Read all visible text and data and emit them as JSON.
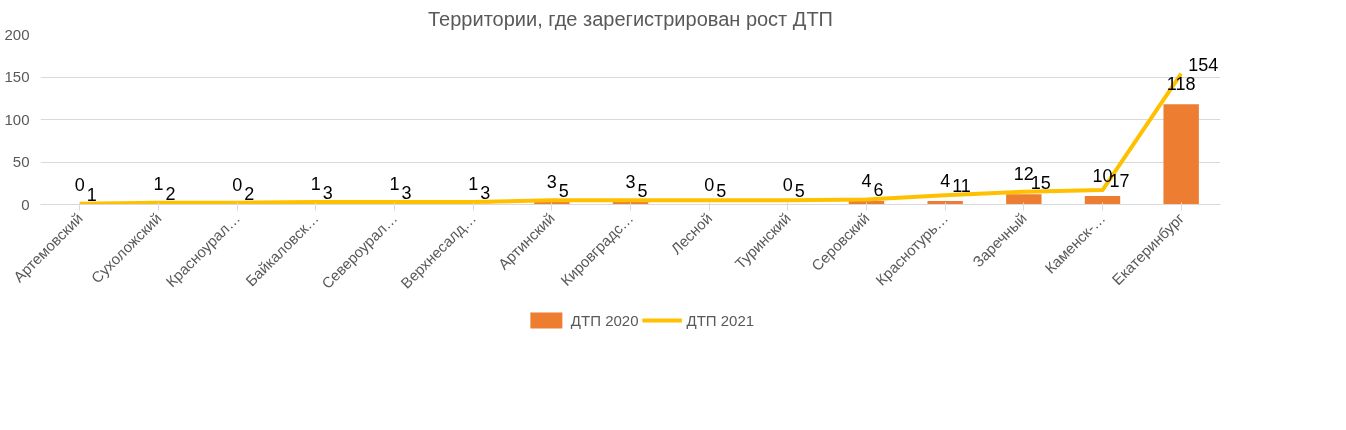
{
  "chart_data": {
    "type": "bar",
    "title": "Территории, где зарегистрирован рост ДТП",
    "categories": [
      "Артемовский",
      "Сухоложский",
      "Красноурал…",
      "Байкаловск…",
      "Североурал…",
      "Верхнесалд…",
      "Артинский",
      "Кировградс…",
      "Лесной",
      "Туринский",
      "Серовский",
      "Краснотурь…",
      "Заречный",
      "Каменск-…",
      "Екатеринбург"
    ],
    "series": [
      {
        "name": "ДТП 2020",
        "color": "#ed7d31",
        "values": [
          0,
          1,
          0,
          1,
          1,
          1,
          3,
          3,
          0,
          0,
          4,
          4,
          12,
          10,
          118
        ]
      },
      {
        "name": "ДТП 2021",
        "type": "line",
        "color": "#ffc000",
        "values": [
          1,
          2,
          2,
          3,
          3,
          3,
          5,
          5,
          5,
          5,
          6,
          11,
          15,
          17,
          154
        ]
      }
    ],
    "ylim": [
      0,
      200
    ],
    "yticks": [
      0,
      50,
      100,
      150,
      200
    ],
    "grid": "y",
    "legend": "bottom",
    "data_labels": true
  }
}
